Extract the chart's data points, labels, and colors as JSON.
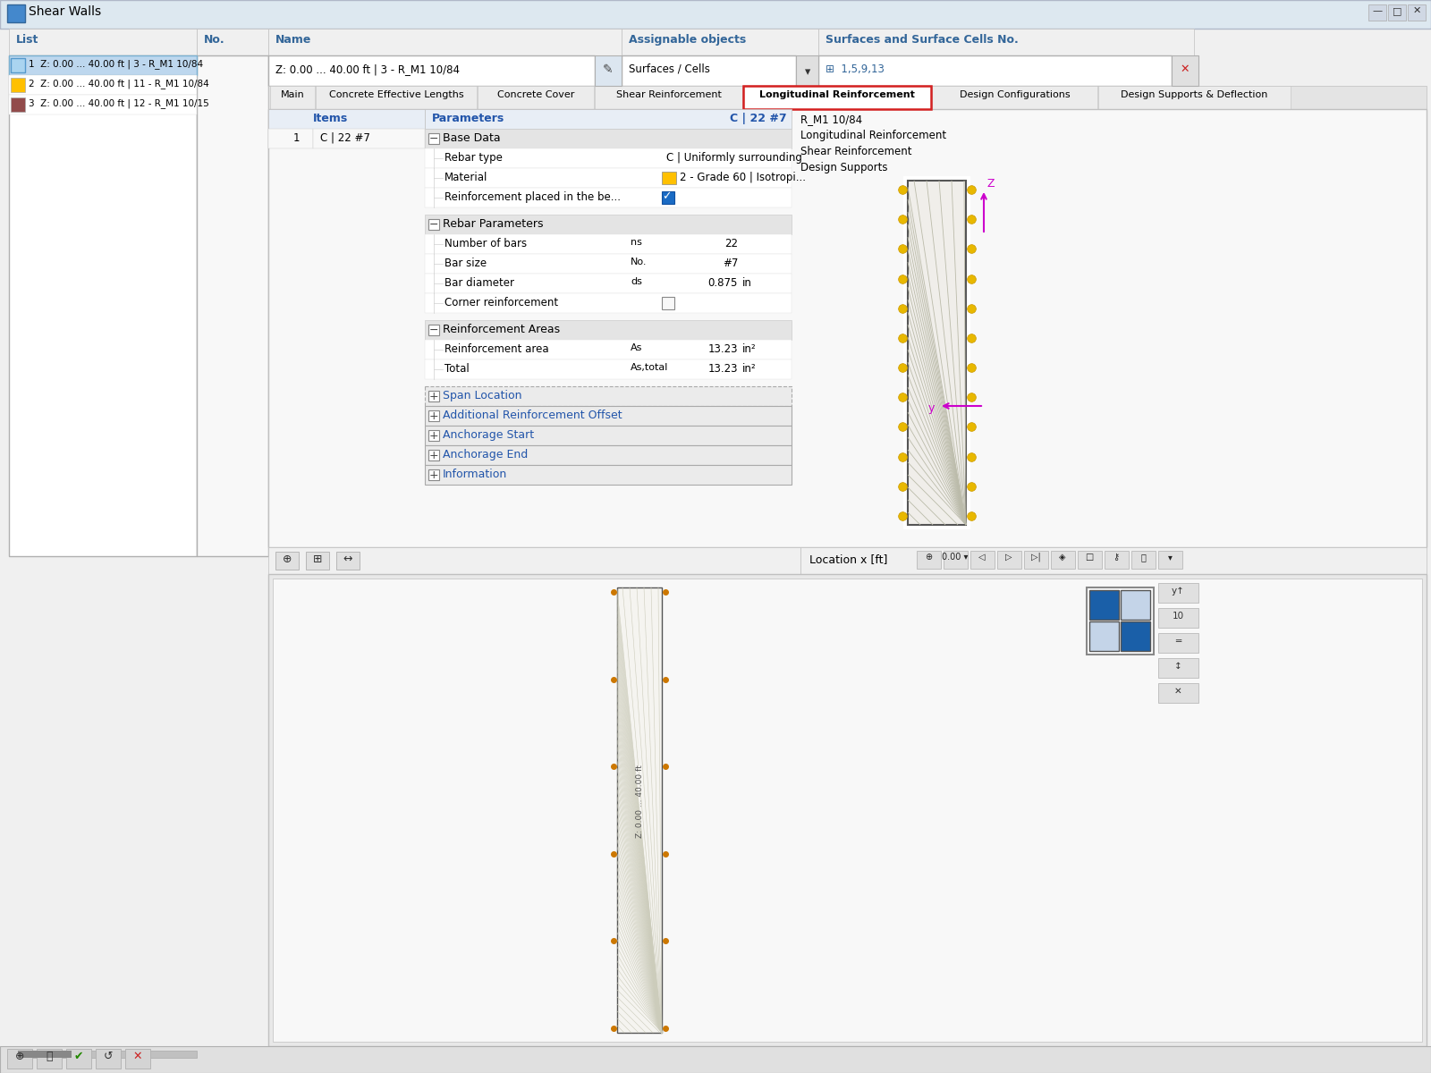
{
  "title_bar": "Shear Walls",
  "window_bg": "#f0f0f0",
  "content_bg": "#ffffff",
  "titlebar_bg": "#e8eef4",
  "header_bg": "#e8eef4",
  "selected_row_bg": "#bdd7ee",
  "tab_active_border": "#e02020",
  "section_header_bg": "#e8e8e8",
  "list_items": [
    {
      "color": "#aad4f0",
      "text": "1  Z: 0.00 ... 40.00 ft | 3 - R_M1 10/84",
      "selected": true
    },
    {
      "color": "#ffc000",
      "text": "2  Z: 0.00 ... 40.00 ft | 11 - R_M1 10/84",
      "selected": false
    },
    {
      "color": "#924b4b",
      "text": "3  Z: 0.00 ... 40.00 ft | 12 - R_M1 10/15",
      "selected": false
    }
  ],
  "no_label": "No.",
  "name_label": "Name",
  "name_value": "Z: 0.00 ... 40.00 ft | 3 - R_M1 10/84",
  "assignable_label": "Assignable objects",
  "assignable_value": "Surfaces / Cells",
  "surfaces_label": "Surfaces and Surface Cells No.",
  "surfaces_value": "1,5,9,13",
  "tabs": [
    "Main",
    "Concrete Effective Lengths",
    "Concrete Cover",
    "Shear Reinforcement",
    "Longitudinal Reinforcement",
    "Design Configurations",
    "Design Supports & Deflection"
  ],
  "active_tab": "Longitudinal Reinforcement",
  "items_header": "Items",
  "params_header": "Parameters",
  "params_right": "C | 22 #7",
  "item_num": "1",
  "item_value": "C | 22 #7",
  "base_data_label": "Base Data",
  "rebar_type_label": "Rebar type",
  "rebar_type_value": "C | Uniformly surrounding",
  "material_label": "Material",
  "material_color": "#ffc000",
  "material_value": "2 - Grade 60 | Isotropi...",
  "reinf_placed_label": "Reinforcement placed in the be...",
  "rebar_params_label": "Rebar Parameters",
  "num_bars_label": "Number of bars",
  "num_bars_symbol": "ns",
  "num_bars_value": "22",
  "bar_size_label": "Bar size",
  "bar_size_symbol": "No.",
  "bar_size_value": "#7",
  "bar_diam_label": "Bar diameter",
  "bar_diam_symbol": "ds",
  "bar_diam_value": "0.875",
  "bar_diam_unit": "in",
  "corner_reinf_label": "Corner reinforcement",
  "reinf_areas_label": "Reinforcement Areas",
  "reinf_area_label": "Reinforcement area",
  "reinf_area_symbol": "As",
  "reinf_area_value": "13.23",
  "reinf_area_unit": "in²",
  "total_label": "Total",
  "total_symbol": "As,total",
  "total_value": "13.23",
  "total_unit": "in²",
  "span_loc_label": "Span Location",
  "add_reinf_label": "Additional Reinforcement Offset",
  "anch_start_label": "Anchorage Start",
  "anch_end_label": "Anchorage End",
  "info_label": "Information",
  "right_info_lines": [
    "R_M1 10/84",
    "Longitudinal Reinforcement",
    "Shear Reinforcement",
    "Design Supports"
  ],
  "location_x_label": "Location x [ft]",
  "location_x_value": "0.00"
}
